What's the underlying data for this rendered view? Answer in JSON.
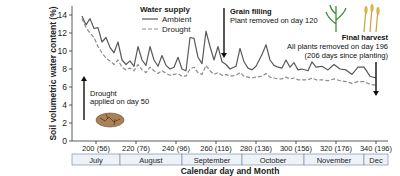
{
  "chart_data": {
    "type": "line",
    "x_label": "Calendar day and Month",
    "y_label": "Soil volumetric water content (%)",
    "xlim": [
      188,
      346
    ],
    "xticks": [
      {
        "value": 200,
        "label": "200 (56)"
      },
      {
        "value": 220,
        "label": "220 (76)"
      },
      {
        "value": 240,
        "label": "240 (96)"
      },
      {
        "value": 260,
        "label": "260 (116)"
      },
      {
        "value": 280,
        "label": "280 (136)"
      },
      {
        "value": 300,
        "label": "300 (156)"
      },
      {
        "value": 320,
        "label": "320 (176)"
      },
      {
        "value": 340,
        "label": "340 (196)"
      }
    ],
    "ylim": [
      0,
      15
    ],
    "yticks": [
      0,
      2,
      4,
      6,
      8,
      10,
      12,
      14
    ],
    "grid": false,
    "legend": "top",
    "legend_title": "Water supply",
    "month_bands": [
      {
        "label": "July",
        "start": 188,
        "end": 212
      },
      {
        "label": "August",
        "start": 212,
        "end": 243
      },
      {
        "label": "September",
        "start": 243,
        "end": 273
      },
      {
        "label": "October",
        "start": 273,
        "end": 304
      },
      {
        "label": "November",
        "start": 304,
        "end": 334
      },
      {
        "label": "Dec",
        "start": 334,
        "end": 346
      }
    ],
    "annotations": [
      {
        "lines": [
          "Drought",
          "applied on day 50"
        ],
        "x": 194
      },
      {
        "lines": [
          "Grain filling",
          "Plant removed on day 120"
        ],
        "x": 264
      },
      {
        "lines": [
          "Final harvest",
          "All plants removed on day 196",
          "(206 days since planting)"
        ],
        "x": 340
      }
    ],
    "x": [
      193,
      195,
      197,
      199,
      201,
      203,
      205,
      207,
      209,
      211,
      213,
      215,
      217,
      219,
      221,
      223,
      225,
      227,
      229,
      231,
      233,
      235,
      237,
      239,
      241,
      243,
      245,
      247,
      249,
      251,
      253,
      255,
      257,
      259,
      261,
      263,
      265,
      267,
      270,
      272,
      274,
      276,
      278,
      280,
      283,
      285,
      287,
      289,
      291,
      293,
      295,
      297,
      299,
      301,
      303,
      306,
      308,
      310,
      313,
      316,
      319,
      322,
      325,
      328,
      331,
      334,
      337,
      340
    ],
    "series": [
      {
        "name": "Ambient",
        "color": "#595959",
        "line_style": "solid",
        "values": [
          13.9,
          12.9,
          13.6,
          12.5,
          12.6,
          11.0,
          11.5,
          10.4,
          9.8,
          11.0,
          9.0,
          8.5,
          8.9,
          8.3,
          10.5,
          9.0,
          8.4,
          10.5,
          9.0,
          8.3,
          9.5,
          8.4,
          8.0,
          8.2,
          9.3,
          8.0,
          7.8,
          11.5,
          11.4,
          9.3,
          8.6,
          12.2,
          10.5,
          9.0,
          10.5,
          8.8,
          8.5,
          8.0,
          8.3,
          10.3,
          8.8,
          8.1,
          7.9,
          8.3,
          9.6,
          10.7,
          9.0,
          8.4,
          8.2,
          8.1,
          9.0,
          8.2,
          8.7,
          7.9,
          8.0,
          7.8,
          8.8,
          8.2,
          8.3,
          7.9,
          8.5,
          8.0,
          7.9,
          7.4,
          8.2,
          8.2,
          7.2,
          7.0
        ]
      },
      {
        "name": "Drought",
        "color": "#8c8c8c",
        "line_style": "dashed",
        "values": [
          13.6,
          12.6,
          12.0,
          11.5,
          10.5,
          9.8,
          9.2,
          8.9,
          8.5,
          9.0,
          8.2,
          7.9,
          8.1,
          7.8,
          8.5,
          7.9,
          7.6,
          8.2,
          7.8,
          7.5,
          7.8,
          7.5,
          7.3,
          7.4,
          7.5,
          7.2,
          7.2,
          8.0,
          8.2,
          7.6,
          7.4,
          8.4,
          7.8,
          7.4,
          7.6,
          7.3,
          7.4,
          7.2,
          7.3,
          7.6,
          7.2,
          7.1,
          7.0,
          7.1,
          7.2,
          7.5,
          7.1,
          7.0,
          6.9,
          6.9,
          7.1,
          6.9,
          7.0,
          6.8,
          6.8,
          6.8,
          7.0,
          6.8,
          6.8,
          6.7,
          6.9,
          6.7,
          6.6,
          6.4,
          6.6,
          6.6,
          6.3,
          6.2
        ]
      }
    ]
  }
}
